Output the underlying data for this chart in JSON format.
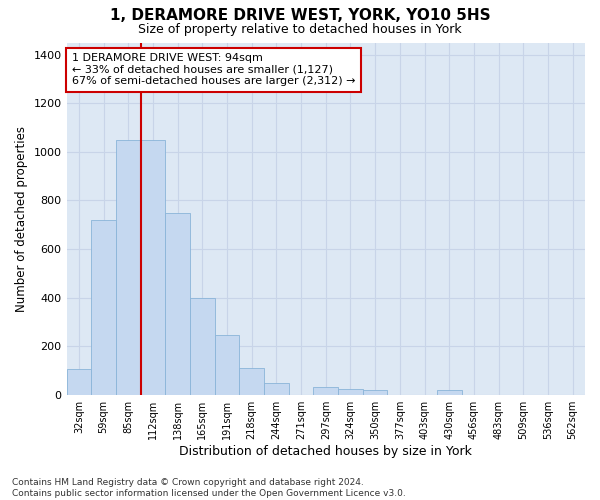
{
  "title_line1": "1, DERAMORE DRIVE WEST, YORK, YO10 5HS",
  "title_line2": "Size of property relative to detached houses in York",
  "xlabel": "Distribution of detached houses by size in York",
  "ylabel": "Number of detached properties",
  "categories": [
    "32sqm",
    "59sqm",
    "85sqm",
    "112sqm",
    "138sqm",
    "165sqm",
    "191sqm",
    "218sqm",
    "244sqm",
    "271sqm",
    "297sqm",
    "324sqm",
    "350sqm",
    "377sqm",
    "403sqm",
    "430sqm",
    "456sqm",
    "483sqm",
    "509sqm",
    "536sqm",
    "562sqm"
  ],
  "values": [
    105,
    720,
    1050,
    1050,
    750,
    400,
    245,
    110,
    48,
    0,
    30,
    25,
    20,
    0,
    0,
    18,
    0,
    0,
    0,
    0,
    0
  ],
  "bar_color": "#c5d8f0",
  "bar_edge_color": "#8ab4d8",
  "vline_color": "#cc0000",
  "annotation_text": "1 DERAMORE DRIVE WEST: 94sqm\n← 33% of detached houses are smaller (1,127)\n67% of semi-detached houses are larger (2,312) →",
  "annotation_box_facecolor": "white",
  "annotation_box_edgecolor": "#cc0000",
  "ylim": [
    0,
    1450
  ],
  "yticks": [
    0,
    200,
    400,
    600,
    800,
    1000,
    1200,
    1400
  ],
  "grid_color": "#c8d4e8",
  "plot_bg_color": "#dde8f4",
  "fig_bg_color": "#ffffff",
  "footnote": "Contains HM Land Registry data © Crown copyright and database right 2024.\nContains public sector information licensed under the Open Government Licence v3.0."
}
